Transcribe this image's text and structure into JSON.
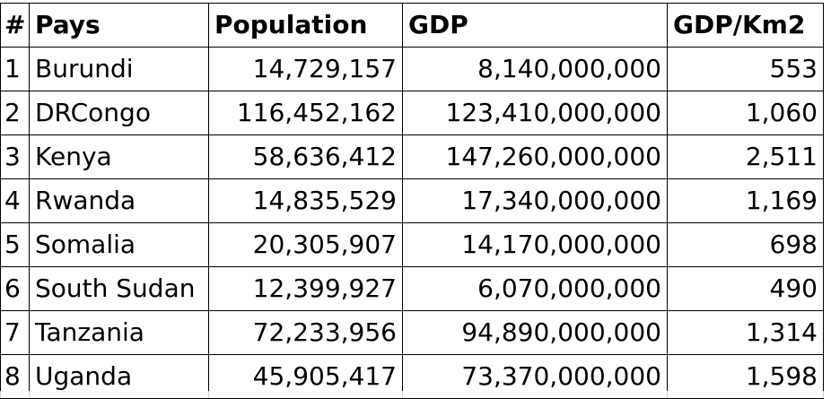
{
  "table": {
    "headers": [
      "#",
      "Pays",
      "Population",
      "GDP",
      "GDP/Km2"
    ],
    "rows": [
      {
        "idx": "1",
        "pays": "Burundi",
        "population": "14,729,157",
        "gdp": "8,140,000,000",
        "gdp_km2": "553"
      },
      {
        "idx": "2",
        "pays": "DRCongo",
        "population": "116,452,162",
        "gdp": "123,410,000,000",
        "gdp_km2": "1,060"
      },
      {
        "idx": "3",
        "pays": "Kenya",
        "population": "58,636,412",
        "gdp": "147,260,000,000",
        "gdp_km2": "2,511"
      },
      {
        "idx": "4",
        "pays": "Rwanda",
        "population": "14,835,529",
        "gdp": "17,340,000,000",
        "gdp_km2": "1,169"
      },
      {
        "idx": "5",
        "pays": "Somalia",
        "population": "20,305,907",
        "gdp": "14,170,000,000",
        "gdp_km2": "698"
      },
      {
        "idx": "6",
        "pays": "South Sudan",
        "population": "12,399,927",
        "gdp": "6,070,000,000",
        "gdp_km2": "490"
      },
      {
        "idx": "7",
        "pays": "Tanzania",
        "population": "72,233,956",
        "gdp": "94,890,000,000",
        "gdp_km2": "1,314"
      },
      {
        "idx": "8",
        "pays": "Uganda",
        "population": "45,905,417",
        "gdp": "73,370,000,000",
        "gdp_km2": "1,598"
      }
    ]
  }
}
